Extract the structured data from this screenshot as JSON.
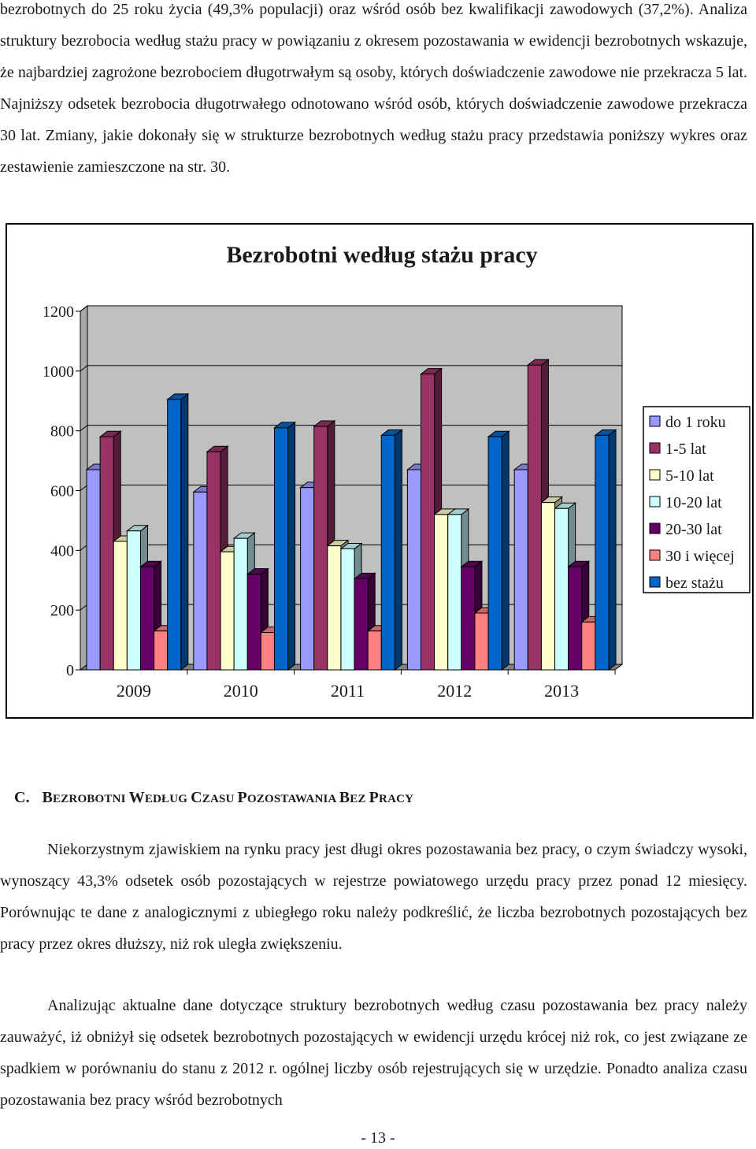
{
  "document": {
    "intro_paragraph": "bezrobotnych do 25 roku życia (49,3% populacji) oraz wśród osób bez kwalifikacji zawodowych (37,2%). Analiza struktury bezrobocia według stażu pracy w powiązaniu z okresem pozostawania w ewidencji bezrobotnych wskazuje, że najbardziej zagrożone bezrobociem długotrwałym są osoby, których doświadczenie zawodowe nie przekracza 5 lat. Najniższy odsetek bezrobocia długotrwałego odnotowano wśród osób, których doświadczenie zawodowe przekracza 30 lat. Zmiany, jakie dokonały się w strukturze bezrobotnych według stażu pracy przedstawia poniższy wykres oraz zestawienie zamieszczone na str. 30.",
    "section": {
      "letter": "C.",
      "heading_parts": [
        "B",
        "EZROBOTNI ",
        "W",
        "EDŁUG ",
        "C",
        "ZASU ",
        "P",
        "OZOSTAWANIA ",
        "B",
        "EZ ",
        "P",
        "RACY"
      ]
    },
    "paragraph_2": "Niekorzystnym zjawiskiem na rynku pracy jest długi okres pozostawania bez pracy, o czym świadczy wysoki, wynoszący 43,3% odsetek osób pozostających w rejestrze powiatowego urzędu pracy przez ponad 12 miesięcy. Porównując te dane z analogicznymi z ubiegłego roku należy podkreślić, że liczba bezrobotnych pozostających bez pracy przez okres dłuższy, niż rok uległa zwiększeniu.",
    "paragraph_3": "Analizując aktualne dane dotyczące struktury bezrobotnych według czasu pozostawania bez pracy należy zauważyć, iż obniżył się odsetek bezrobotnych pozostających w ewidencji urzędu krócej niż rok, co jest związane ze spadkiem w porównaniu do stanu z 2012 r. ogólnej liczby osób rejestrujących się w urzędzie. Ponadto analiza czasu pozostawania bez pracy wśród bezrobotnych",
    "page_number": "- 13 -"
  },
  "chart_data": {
    "type": "bar",
    "title": "Bezrobotni według stażu pracy",
    "xlabel": "",
    "ylabel": "",
    "categories": [
      "2009",
      "2010",
      "2011",
      "2012",
      "2013"
    ],
    "ylim": [
      0,
      1200
    ],
    "yticks": [
      0,
      200,
      400,
      600,
      800,
      1000,
      1200
    ],
    "grid": true,
    "legend_position": "right",
    "series": [
      {
        "name": "do 1 roku",
        "color": "#9999ff",
        "values": [
          670,
          595,
          610,
          670,
          670
        ]
      },
      {
        "name": "1-5 lat",
        "color": "#993366",
        "values": [
          780,
          730,
          815,
          990,
          1020
        ]
      },
      {
        "name": "5-10 lat",
        "color": "#ffffcc",
        "values": [
          430,
          395,
          415,
          520,
          560
        ]
      },
      {
        "name": "10-20 lat",
        "color": "#ccffff",
        "values": [
          465,
          440,
          405,
          520,
          540
        ]
      },
      {
        "name": "20-30 lat",
        "color": "#660066",
        "values": [
          345,
          320,
          305,
          345,
          345
        ]
      },
      {
        "name": "30 i więcej",
        "color": "#ff8080",
        "values": [
          130,
          125,
          130,
          190,
          160
        ]
      },
      {
        "name": "bez stażu",
        "color": "#0066cc",
        "values": [
          905,
          810,
          785,
          780,
          785
        ]
      }
    ]
  }
}
